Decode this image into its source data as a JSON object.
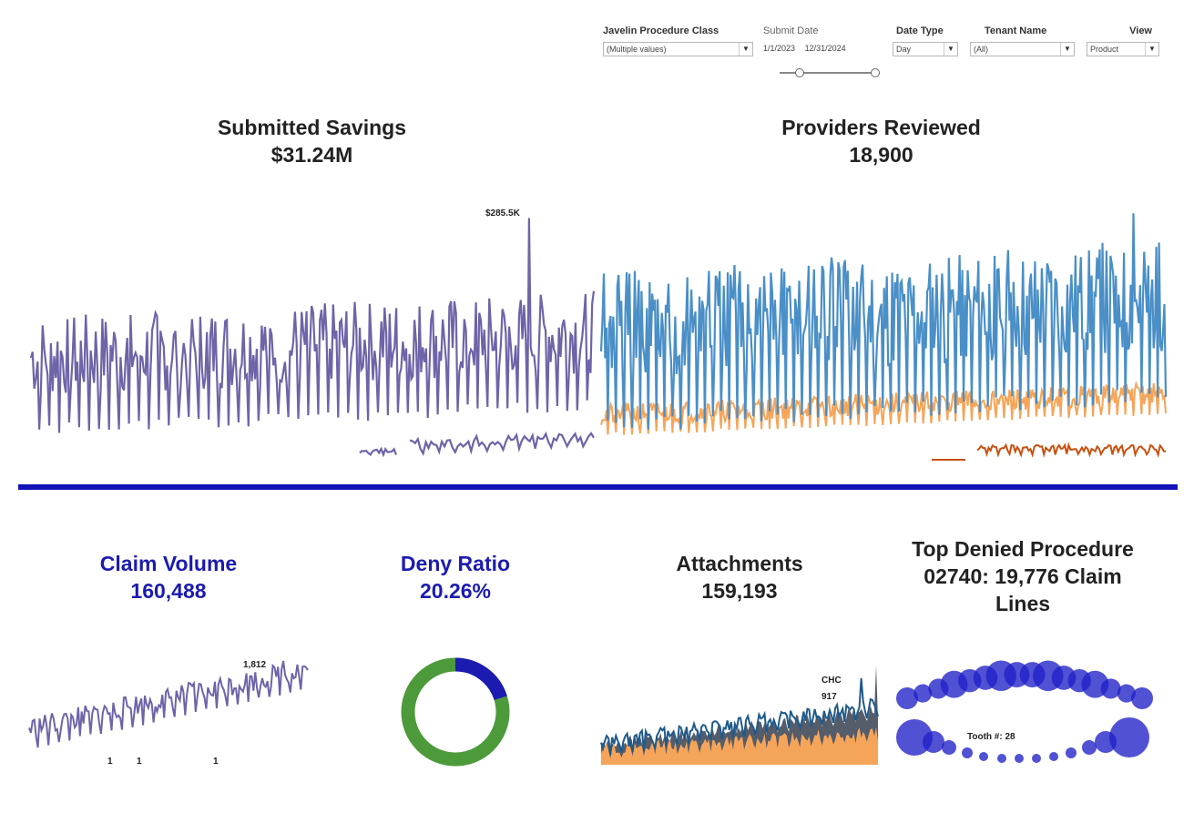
{
  "filters": {
    "procedure_class": {
      "label": "Javelin Procedure Class",
      "value": "(Multiple values)"
    },
    "submit_date": {
      "label": "Submit Date",
      "start": "1/1/2023",
      "end": "12/31/2024",
      "range": [
        0.2,
        1.0
      ]
    },
    "date_type": {
      "label": "Date Type",
      "value": "Day"
    },
    "tenant_name": {
      "label": "Tenant Name",
      "value": "(All)"
    },
    "view": {
      "label": "View",
      "value": "Product"
    },
    "dropdown_icon": "chevron-down-icon"
  },
  "kpis": {
    "submitted_savings": {
      "title": "Submitted Savings",
      "value": "$31.24M"
    },
    "providers_reviewed": {
      "title": "Providers Reviewed",
      "value": "18,900"
    },
    "claim_volume": {
      "title": "Claim Volume",
      "value": "160,488"
    },
    "deny_ratio": {
      "title": "Deny Ratio",
      "value": "20.26%"
    },
    "attachments": {
      "title": "Attachments",
      "value": "159,193"
    },
    "top_denied": {
      "title_line1": "Top Denied Procedure",
      "title_line2": "02740: 19,776 Claim",
      "title_line3": "Lines"
    }
  },
  "colors": {
    "purple": "#6e64a8",
    "blue": "#4a8fc7",
    "orange": "#f5a55a",
    "dark_orange": "#c8500f",
    "navy": "#1f5a8a",
    "divider": "#1212b8",
    "green": "#4d9a3a",
    "deep_blue": "#1b1bb0"
  },
  "chart_data": [
    {
      "type": "line",
      "chart": "submitted-savings",
      "annotations": [
        "$285.5K"
      ],
      "peak": 285.5,
      "series": [
        {
          "points": 340,
          "range": [
            20,
            200
          ]
        },
        {
          "points": 140,
          "range": [
            10,
            40
          ]
        }
      ]
    },
    {
      "type": "line",
      "chart": "providers-reviewed",
      "series": [
        {
          "points": 420,
          "range": [
            60,
            300
          ]
        },
        {
          "points": 420,
          "range": [
            30,
            80
          ]
        },
        {
          "points": 120,
          "range": [
            5,
            15
          ]
        }
      ]
    },
    {
      "type": "line",
      "chart": "claim-volume",
      "annotations": [
        "1,812",
        "1",
        "1",
        "1"
      ],
      "peak": 1812
    },
    {
      "type": "pie",
      "chart": "deny-ratio",
      "slices": [
        {
          "value": 20.26,
          "color": "#1b1bb0"
        },
        {
          "value": 79.74,
          "color": "#4d9a3a"
        }
      ]
    },
    {
      "type": "area",
      "chart": "attachments",
      "annotations": [
        "CHC",
        "917"
      ],
      "peak": 917
    },
    {
      "type": "scatter",
      "chart": "tooth-chart",
      "annotation": "Tooth #: 28",
      "teeth": 32
    }
  ]
}
